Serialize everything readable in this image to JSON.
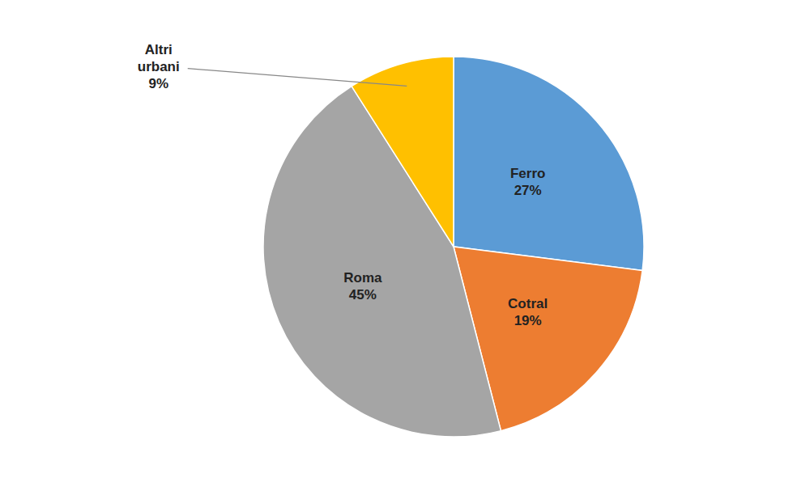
{
  "chart_data": {
    "type": "pie",
    "categories": [
      "Ferro",
      "Cotral",
      "Roma",
      "Altri urbani"
    ],
    "values": [
      27,
      19,
      45,
      9
    ],
    "value_labels": [
      "27%",
      "19%",
      "45%",
      "9%"
    ],
    "colors": [
      "#5B9BD5",
      "#ED7D31",
      "#A5A5A5",
      "#FFC000"
    ],
    "data_labels": true
  }
}
